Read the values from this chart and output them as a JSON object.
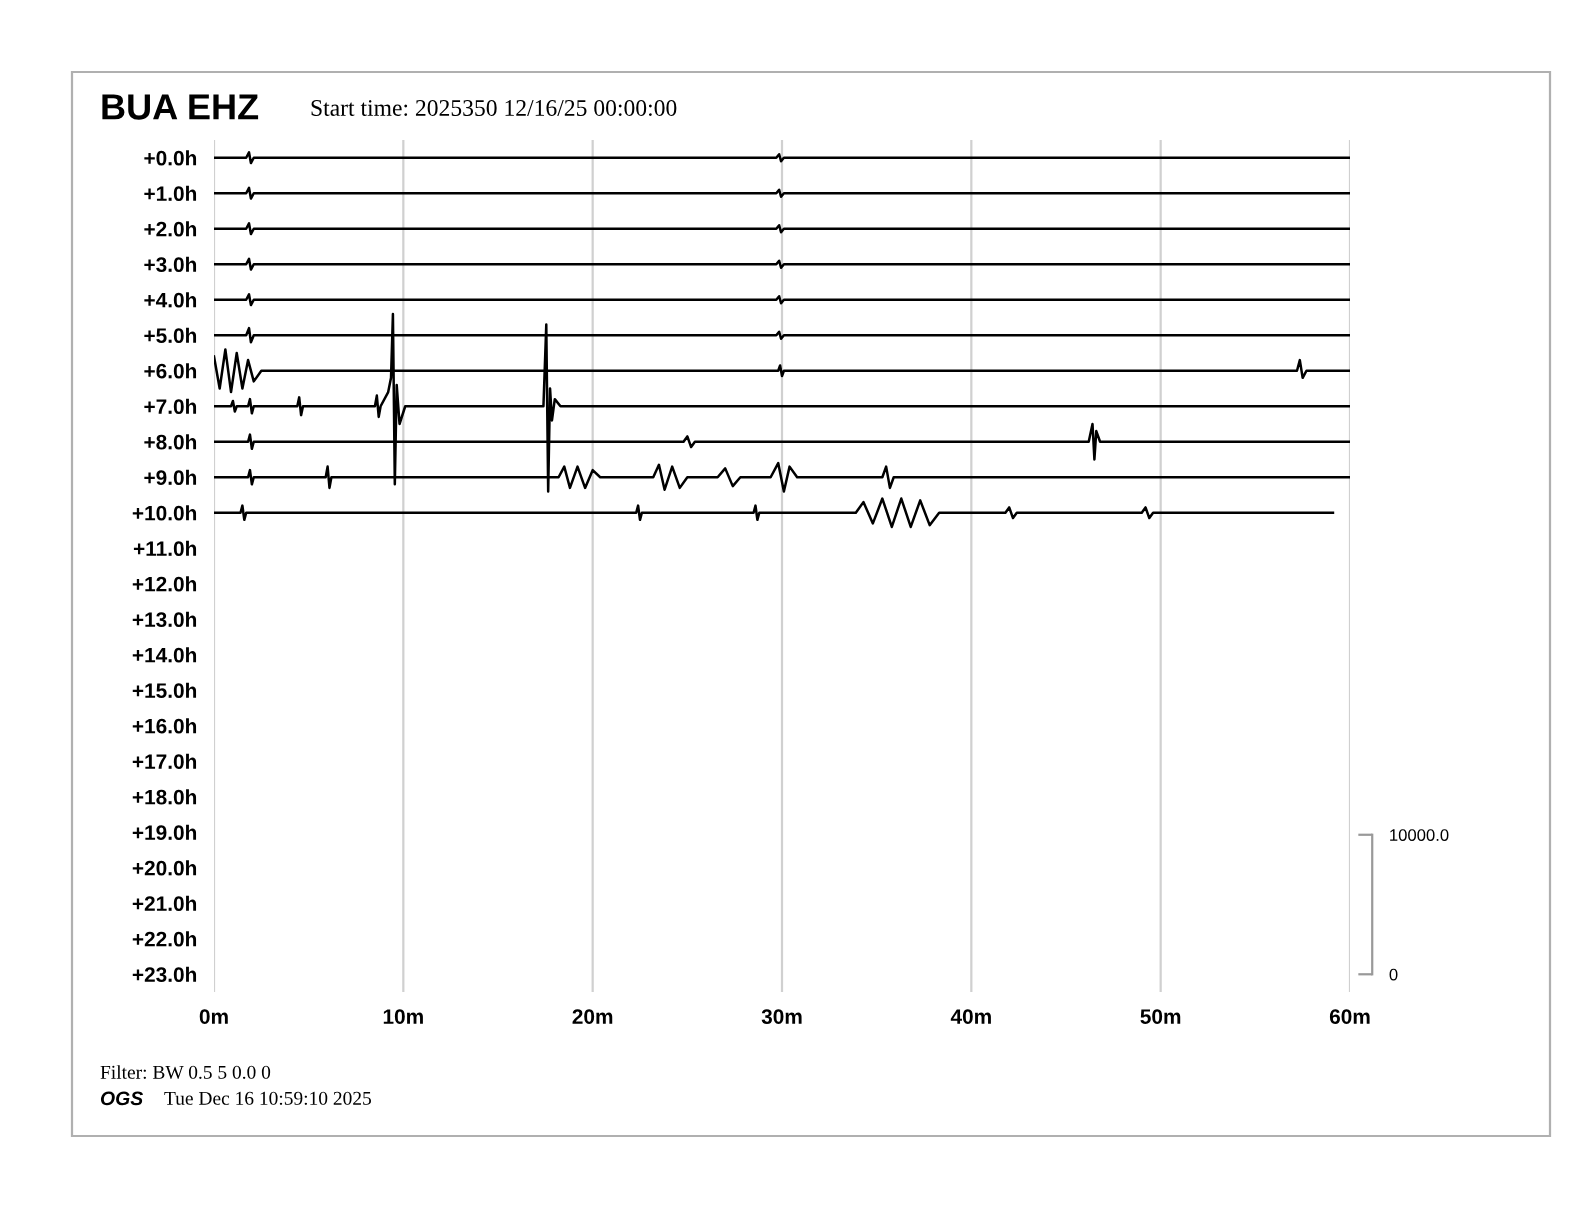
{
  "chart_data": {
    "type": "line",
    "title": "BUA EHZ",
    "subtitle": "Start time: 2025350 12/16/25 00:00:00",
    "annotations": [
      "Filter: BW 0.5 5 0.0 0",
      "OGS",
      "Tue Dec 16 10:59:10 2025"
    ],
    "xlim": [
      0,
      60
    ],
    "xticks": [
      {
        "value": 0,
        "label": "0m"
      },
      {
        "value": 10,
        "label": "10m"
      },
      {
        "value": 20,
        "label": "20m"
      },
      {
        "value": 30,
        "label": "30m"
      },
      {
        "value": 40,
        "label": "40m"
      },
      {
        "value": 50,
        "label": "50m"
      },
      {
        "value": 60,
        "label": "60m"
      }
    ],
    "ylim": [
      23.5,
      -0.5
    ],
    "yticks": [
      {
        "value": 0,
        "label": "+0.0h"
      },
      {
        "value": 1,
        "label": "+1.0h"
      },
      {
        "value": 2,
        "label": "+2.0h"
      },
      {
        "value": 3,
        "label": "+3.0h"
      },
      {
        "value": 4,
        "label": "+4.0h"
      },
      {
        "value": 5,
        "label": "+5.0h"
      },
      {
        "value": 6,
        "label": "+6.0h"
      },
      {
        "value": 7,
        "label": "+7.0h"
      },
      {
        "value": 8,
        "label": "+8.0h"
      },
      {
        "value": 9,
        "label": "+9.0h"
      },
      {
        "value": 10,
        "label": "+10.0h"
      },
      {
        "value": 11,
        "label": "+11.0h"
      },
      {
        "value": 12,
        "label": "+12.0h"
      },
      {
        "value": 13,
        "label": "+13.0h"
      },
      {
        "value": 14,
        "label": "+14.0h"
      },
      {
        "value": 15,
        "label": "+15.0h"
      },
      {
        "value": 16,
        "label": "+16.0h"
      },
      {
        "value": 17,
        "label": "+17.0h"
      },
      {
        "value": 18,
        "label": "+18.0h"
      },
      {
        "value": 19,
        "label": "+19.0h"
      },
      {
        "value": 20,
        "label": "+20.0h"
      },
      {
        "value": 21,
        "label": "+21.0h"
      },
      {
        "value": 22,
        "label": "+22.0h"
      },
      {
        "value": 23,
        "label": "+23.0h"
      }
    ],
    "y2lim": [
      -1270,
      59800
    ],
    "y2ticks": [
      0,
      {
        "value": 10000,
        "label": "10000.0"
      }
    ],
    "grid": "x",
    "series": [
      {
        "color": "#000000",
        "x": [
          0,
          1.7,
          1.85,
          1.95,
          2.1,
          29.7,
          29.85,
          29.95,
          30.1,
          60
        ],
        "values": [
          0,
          0,
          -0.15,
          0.15,
          0,
          0,
          -0.1,
          0.1,
          0,
          0
        ]
      },
      {
        "color": "#000000",
        "x": [
          0,
          1.7,
          1.85,
          1.95,
          2.1,
          29.7,
          29.85,
          29.95,
          30.1,
          60
        ],
        "values": [
          1,
          1,
          0.85,
          1.15,
          1,
          1,
          0.9,
          1.1,
          1,
          1
        ]
      },
      {
        "color": "#000000",
        "x": [
          0,
          1.7,
          1.85,
          1.95,
          2.1,
          29.7,
          29.85,
          29.95,
          30.1,
          60
        ],
        "values": [
          2,
          2,
          1.85,
          2.15,
          2,
          2,
          1.9,
          2.1,
          2,
          2
        ]
      },
      {
        "color": "#000000",
        "x": [
          0,
          1.7,
          1.85,
          1.95,
          2.1,
          29.7,
          29.85,
          29.95,
          30.1,
          60
        ],
        "values": [
          3,
          3,
          2.85,
          3.15,
          3,
          3,
          2.9,
          3.1,
          3,
          3
        ]
      },
      {
        "color": "#000000",
        "x": [
          0,
          1.7,
          1.85,
          1.95,
          2.1,
          29.7,
          29.85,
          29.95,
          30.1,
          60
        ],
        "values": [
          4,
          4,
          3.85,
          4.15,
          4,
          4,
          3.9,
          4.1,
          4,
          4
        ]
      },
      {
        "color": "#000000",
        "x": [
          0,
          1.7,
          1.85,
          1.95,
          2.1,
          29.7,
          29.85,
          29.95,
          30.1,
          60
        ],
        "values": [
          5,
          5,
          4.8,
          5.2,
          5,
          5,
          4.9,
          5.1,
          5,
          5
        ]
      },
      {
        "color": "#000000",
        "x": [
          0,
          0.3,
          0.6,
          0.9,
          1.2,
          1.5,
          1.8,
          2.1,
          2.5,
          29.8,
          29.9,
          30,
          30.1,
          57.2,
          57.35,
          57.5,
          57.7,
          60
        ],
        "values": [
          5.6,
          6.5,
          5.4,
          6.6,
          5.5,
          6.5,
          5.7,
          6.3,
          6,
          6,
          5.85,
          6.15,
          6,
          6,
          5.7,
          6.2,
          6,
          6
        ]
      },
      {
        "color": "#000000",
        "x": [
          0,
          0.9,
          1,
          1.1,
          1.2,
          1.8,
          1.9,
          2,
          2.1,
          4.4,
          4.5,
          4.6,
          4.7,
          8.5,
          8.6,
          8.7,
          8.8,
          9.2,
          9.35,
          9.45,
          9.55,
          9.65,
          9.8,
          10.1,
          17.4,
          17.55,
          17.65,
          17.75,
          17.85,
          18,
          18.3,
          30,
          60
        ],
        "values": [
          7,
          7,
          6.85,
          7.15,
          7,
          7,
          6.8,
          7.2,
          7,
          7,
          6.75,
          7.25,
          7,
          7,
          6.7,
          7.3,
          7,
          6.6,
          6.2,
          4.4,
          9.2,
          6.4,
          7.5,
          7,
          7,
          4.7,
          9.4,
          6.5,
          7.4,
          6.8,
          7,
          7,
          7
        ]
      },
      {
        "color": "#000000",
        "x": [
          0,
          1.8,
          1.9,
          2,
          2.1,
          24.8,
          25,
          25.2,
          25.4,
          46.2,
          46.4,
          46.5,
          46.6,
          46.8,
          60
        ],
        "values": [
          8,
          8,
          7.8,
          8.2,
          8,
          8,
          7.85,
          8.15,
          8,
          8,
          7.5,
          8.5,
          7.7,
          8,
          8
        ]
      },
      {
        "color": "#000000",
        "x": [
          0,
          1.8,
          1.9,
          2,
          2.1,
          5.9,
          6,
          6.1,
          6.2,
          18.2,
          18.5,
          18.8,
          19.2,
          19.6,
          20,
          20.4,
          23.2,
          23.5,
          23.8,
          24.2,
          24.6,
          25,
          26.6,
          27,
          27.4,
          27.8,
          29.4,
          29.8,
          30.1,
          30.4,
          30.8,
          35.3,
          35.5,
          35.7,
          35.9,
          60
        ],
        "values": [
          9,
          9,
          8.8,
          9.2,
          9,
          9,
          8.7,
          9.3,
          9,
          9,
          8.7,
          9.3,
          8.7,
          9.3,
          8.8,
          9,
          9,
          8.65,
          9.35,
          8.7,
          9.3,
          9,
          9,
          8.75,
          9.25,
          9,
          9,
          8.6,
          9.4,
          8.7,
          9,
          9,
          8.7,
          9.3,
          9,
          9
        ]
      },
      {
        "color": "#000000",
        "x": [
          0,
          1.4,
          1.5,
          1.6,
          1.7,
          22.3,
          22.4,
          22.5,
          22.6,
          28.5,
          28.6,
          28.7,
          28.8,
          33.9,
          34.3,
          34.8,
          35.3,
          35.8,
          36.3,
          36.8,
          37.3,
          37.8,
          38.3,
          41.8,
          42,
          42.2,
          42.4,
          49,
          49.2,
          49.4,
          49.6,
          59.1
        ],
        "values": [
          10,
          10,
          9.8,
          10.2,
          10,
          10,
          9.8,
          10.2,
          10,
          10,
          9.8,
          10.2,
          10,
          10,
          9.7,
          10.3,
          9.6,
          10.4,
          9.6,
          10.4,
          9.65,
          10.35,
          10,
          10,
          9.85,
          10.15,
          10,
          10,
          9.85,
          10.15,
          10,
          10
        ]
      }
    ]
  }
}
